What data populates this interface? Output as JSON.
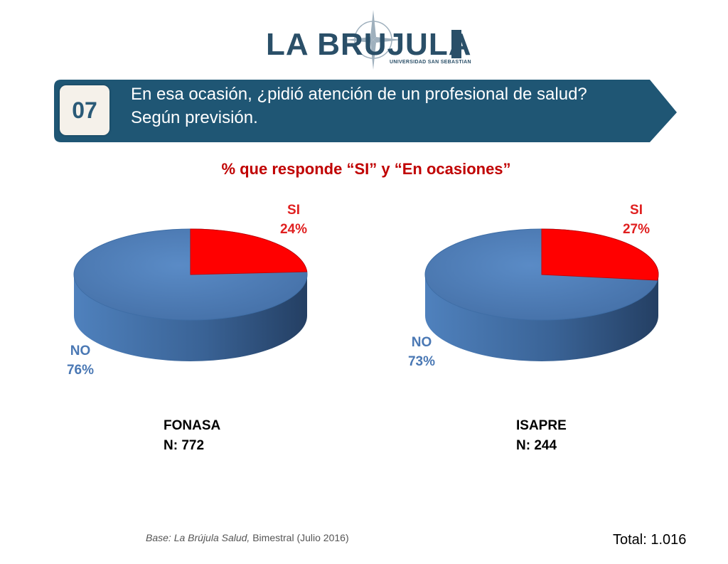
{
  "logo": {
    "name": "LA BRUJULA",
    "subtitle": "UNIVERSIDAD SAN SEBASTIAN"
  },
  "header": {
    "number": "07",
    "question": "En esa ocasión, ¿pidió atención de un profesional de salud? Según previsión."
  },
  "colors": {
    "banner": "#1f5674",
    "si": "#ff0000",
    "no": "#4f81bd",
    "title": "#c00000"
  },
  "chart_data": {
    "type": "pie",
    "title": "% que responde “SI” y “En ocasiones”",
    "charts": [
      {
        "group": "FONASA",
        "n": "N: 772",
        "slices": [
          {
            "name": "SI",
            "value": 24,
            "label": "24%"
          },
          {
            "name": "NO",
            "value": 76,
            "label": "76%"
          }
        ]
      },
      {
        "group": "ISAPRE",
        "n": "N: 244",
        "slices": [
          {
            "name": "SI",
            "value": 27,
            "label": "27%"
          },
          {
            "name": "NO",
            "value": 73,
            "label": "73%"
          }
        ]
      }
    ]
  },
  "footer": {
    "base_italic": "Base: La Brújula Salud,",
    "base_rest": " Bimestral (Julio 2016)",
    "total": "Total: 1.016"
  }
}
